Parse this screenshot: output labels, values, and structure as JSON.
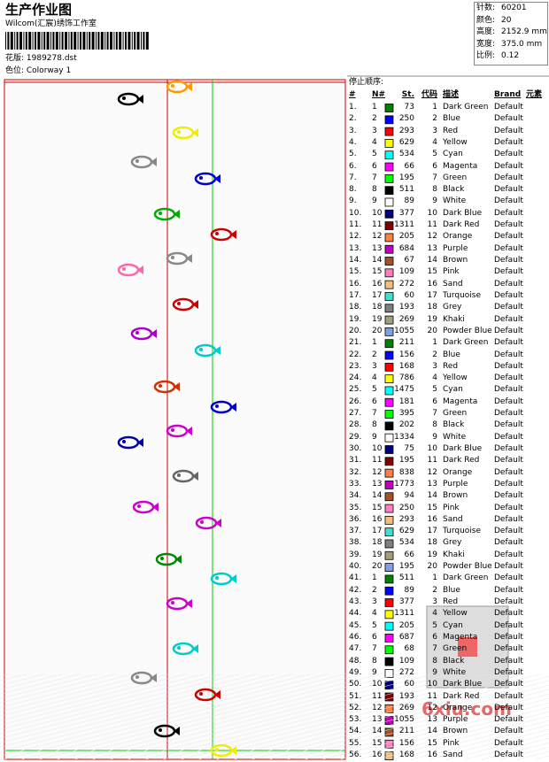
{
  "header": {
    "title": "生产作业图",
    "studio": "Wilcom(汇宸)绣饰工作室",
    "design": "花版: 1989278.dst",
    "colorway": "色位: Colorway 1"
  },
  "info": [
    [
      "针数:",
      "60201"
    ],
    [
      "颜色:",
      "20"
    ],
    [
      "高度:",
      "2152.9 mm"
    ],
    [
      "宽度:",
      "375.0 mm"
    ],
    [
      "比例:",
      "0.12"
    ]
  ],
  "table": {
    "caption": "停止顺序:",
    "columns": [
      "#",
      "N#",
      "St.",
      "代码",
      "描述",
      "Brand",
      "元素"
    ],
    "rows": [
      [
        "1.",
        "1",
        "#008000",
        "73",
        "1",
        "Dark Green",
        "Default"
      ],
      [
        "2.",
        "2",
        "#0000ff",
        "250",
        "2",
        "Blue",
        "Default"
      ],
      [
        "3.",
        "3",
        "#ff0000",
        "293",
        "3",
        "Red",
        "Default"
      ],
      [
        "4.",
        "4",
        "#ffff00",
        "629",
        "4",
        "Yellow",
        "Default"
      ],
      [
        "5.",
        "5",
        "#00ffff",
        "534",
        "5",
        "Cyan",
        "Default"
      ],
      [
        "6.",
        "6",
        "#ff00ff",
        "66",
        "6",
        "Magenta",
        "Default"
      ],
      [
        "7.",
        "7",
        "#00ff00",
        "195",
        "7",
        "Green",
        "Default"
      ],
      [
        "8.",
        "8",
        "#000000",
        "511",
        "8",
        "Black",
        "Default"
      ],
      [
        "9.",
        "9",
        "#ffffff",
        "89",
        "9",
        "White",
        "Default"
      ],
      [
        "10.",
        "10",
        "#000080",
        "377",
        "10",
        "Dark Blue",
        "Default"
      ],
      [
        "11.",
        "11",
        "#800000",
        "1311",
        "11",
        "Dark Red",
        "Default"
      ],
      [
        "12.",
        "12",
        "#ff8040",
        "205",
        "12",
        "Orange",
        "Default"
      ],
      [
        "13.",
        "13",
        "#c000c0",
        "684",
        "13",
        "Purple",
        "Default"
      ],
      [
        "14.",
        "14",
        "#a0522d",
        "67",
        "14",
        "Brown",
        "Default"
      ],
      [
        "15.",
        "15",
        "#ff80c0",
        "109",
        "15",
        "Pink",
        "Default"
      ],
      [
        "16.",
        "16",
        "#f0c080",
        "272",
        "16",
        "Sand",
        "Default"
      ],
      [
        "17.",
        "17",
        "#40e0d0",
        "60",
        "17",
        "Turquoise",
        "Default"
      ],
      [
        "18.",
        "18",
        "#808080",
        "193",
        "18",
        "Grey",
        "Default"
      ],
      [
        "19.",
        "19",
        "#a0a080",
        "269",
        "19",
        "Khaki",
        "Default"
      ],
      [
        "20.",
        "20",
        "#80a0e0",
        "1055",
        "20",
        "Powder Blue",
        "Default"
      ],
      [
        "21.",
        "1",
        "#008000",
        "211",
        "1",
        "Dark Green",
        "Default"
      ],
      [
        "22.",
        "2",
        "#0000ff",
        "156",
        "2",
        "Blue",
        "Default"
      ],
      [
        "23.",
        "3",
        "#ff0000",
        "168",
        "3",
        "Red",
        "Default"
      ],
      [
        "24.",
        "4",
        "#ffff00",
        "786",
        "4",
        "Yellow",
        "Default"
      ],
      [
        "25.",
        "5",
        "#00ffff",
        "1475",
        "5",
        "Cyan",
        "Default"
      ],
      [
        "26.",
        "6",
        "#ff00ff",
        "181",
        "6",
        "Magenta",
        "Default"
      ],
      [
        "27.",
        "7",
        "#00ff00",
        "395",
        "7",
        "Green",
        "Default"
      ],
      [
        "28.",
        "8",
        "#000000",
        "202",
        "8",
        "Black",
        "Default"
      ],
      [
        "29.",
        "9",
        "#ffffff",
        "1334",
        "9",
        "White",
        "Default"
      ],
      [
        "30.",
        "10",
        "#000080",
        "75",
        "10",
        "Dark Blue",
        "Default"
      ],
      [
        "31.",
        "11",
        "#800000",
        "195",
        "11",
        "Dark Red",
        "Default"
      ],
      [
        "32.",
        "12",
        "#ff8040",
        "838",
        "12",
        "Orange",
        "Default"
      ],
      [
        "33.",
        "13",
        "#c000c0",
        "1773",
        "13",
        "Purple",
        "Default"
      ],
      [
        "34.",
        "14",
        "#a0522d",
        "94",
        "14",
        "Brown",
        "Default"
      ],
      [
        "35.",
        "15",
        "#ff80c0",
        "250",
        "15",
        "Pink",
        "Default"
      ],
      [
        "36.",
        "16",
        "#f0c080",
        "293",
        "16",
        "Sand",
        "Default"
      ],
      [
        "37.",
        "17",
        "#40e0d0",
        "629",
        "17",
        "Turquoise",
        "Default"
      ],
      [
        "38.",
        "18",
        "#808080",
        "534",
        "18",
        "Grey",
        "Default"
      ],
      [
        "39.",
        "19",
        "#a0a080",
        "66",
        "19",
        "Khaki",
        "Default"
      ],
      [
        "40.",
        "20",
        "#80a0e0",
        "195",
        "20",
        "Powder Blue",
        "Default"
      ],
      [
        "41.",
        "1",
        "#008000",
        "511",
        "1",
        "Dark Green",
        "Default"
      ],
      [
        "42.",
        "2",
        "#0000ff",
        "89",
        "2",
        "Blue",
        "Default"
      ],
      [
        "43.",
        "3",
        "#ff0000",
        "377",
        "3",
        "Red",
        "Default"
      ],
      [
        "44.",
        "4",
        "#ffff00",
        "1311",
        "4",
        "Yellow",
        "Default"
      ],
      [
        "45.",
        "5",
        "#00ffff",
        "205",
        "5",
        "Cyan",
        "Default"
      ],
      [
        "46.",
        "6",
        "#ff00ff",
        "687",
        "6",
        "Magenta",
        "Default"
      ],
      [
        "47.",
        "7",
        "#00ff00",
        "68",
        "7",
        "Green",
        "Default"
      ],
      [
        "48.",
        "8",
        "#000000",
        "109",
        "8",
        "Black",
        "Default"
      ],
      [
        "49.",
        "9",
        "#ffffff",
        "272",
        "9",
        "White",
        "Default"
      ],
      [
        "50.",
        "10",
        "#000080",
        "60",
        "10",
        "Dark Blue",
        "Default"
      ],
      [
        "51.",
        "11",
        "#800000",
        "193",
        "11",
        "Dark Red",
        "Default"
      ],
      [
        "52.",
        "12",
        "#ff8040",
        "269",
        "12",
        "Orange",
        "Default"
      ],
      [
        "53.",
        "13",
        "#c000c0",
        "1055",
        "13",
        "Purple",
        "Default"
      ],
      [
        "54.",
        "14",
        "#a0522d",
        "211",
        "14",
        "Brown",
        "Default"
      ],
      [
        "55.",
        "15",
        "#ff80c0",
        "156",
        "15",
        "Pink",
        "Default"
      ],
      [
        "56.",
        "16",
        "#f0c080",
        "168",
        "16",
        "Sand",
        "Default"
      ]
    ]
  },
  "watermark": "6xiu.com"
}
